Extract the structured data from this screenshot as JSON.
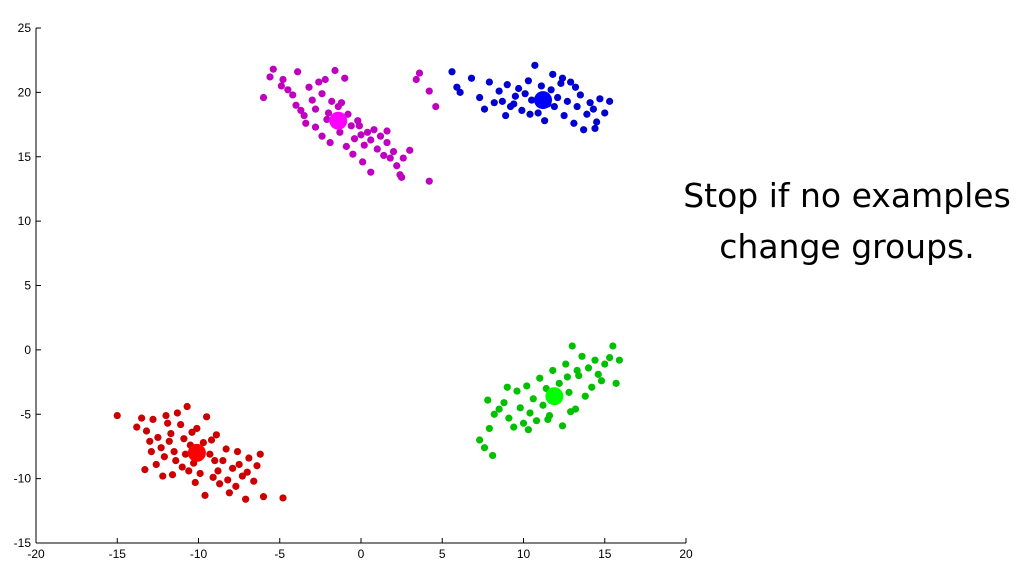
{
  "caption": {
    "line1": "Stop if no examples",
    "line2": "change groups."
  },
  "chart_data": {
    "type": "scatter",
    "title": "",
    "xlabel": "",
    "ylabel": "",
    "xlim": [
      -20,
      20
    ],
    "ylim": [
      -15,
      25
    ],
    "grid": false,
    "x_ticks": [
      -20,
      -15,
      -10,
      -5,
      0,
      5,
      10,
      15,
      20
    ],
    "y_ticks": [
      -15,
      -10,
      -5,
      0,
      5,
      10,
      15,
      20,
      25
    ],
    "series": [
      {
        "color": "#c000c0",
        "centroid": {
          "x": -1.4,
          "y": 17.8,
          "color": "#ff00ff"
        },
        "points": [
          [
            -5.6,
            21.2
          ],
          [
            -5.4,
            21.8
          ],
          [
            -4.8,
            21.0
          ],
          [
            -4.5,
            20.2
          ],
          [
            -4.2,
            19.8
          ],
          [
            -4.0,
            19.0
          ],
          [
            -3.7,
            18.6
          ],
          [
            -3.5,
            18.2
          ],
          [
            -3.2,
            20.4
          ],
          [
            -3.0,
            19.4
          ],
          [
            -2.8,
            18.7
          ],
          [
            -2.6,
            20.8
          ],
          [
            -2.4,
            19.9
          ],
          [
            -2.2,
            21.0
          ],
          [
            -2.0,
            18.4
          ],
          [
            -1.8,
            19.3
          ],
          [
            -1.6,
            21.7
          ],
          [
            -1.4,
            18.9
          ],
          [
            -1.2,
            19.2
          ],
          [
            -1.0,
            21.1
          ],
          [
            -0.8,
            18.3
          ],
          [
            -0.6,
            17.4
          ],
          [
            -0.4,
            16.4
          ],
          [
            -0.2,
            17.8
          ],
          [
            0.0,
            16.7
          ],
          [
            0.2,
            15.9
          ],
          [
            0.4,
            16.9
          ],
          [
            0.6,
            16.3
          ],
          [
            0.8,
            17.1
          ],
          [
            1.0,
            15.6
          ],
          [
            1.2,
            16.6
          ],
          [
            1.4,
            15.1
          ],
          [
            1.6,
            16.1
          ],
          [
            1.8,
            14.9
          ],
          [
            2.0,
            15.4
          ],
          [
            2.2,
            14.3
          ],
          [
            2.4,
            13.6
          ],
          [
            2.6,
            14.9
          ],
          [
            3.0,
            15.5
          ],
          [
            3.4,
            21.0
          ],
          [
            3.6,
            21.5
          ],
          [
            4.2,
            20.1
          ],
          [
            4.6,
            18.9
          ],
          [
            4.2,
            13.1
          ],
          [
            -2.8,
            17.3
          ],
          [
            -2.4,
            16.6
          ],
          [
            -1.9,
            16.1
          ],
          [
            -0.9,
            15.8
          ],
          [
            -0.5,
            15.2
          ],
          [
            0.1,
            14.6
          ],
          [
            0.6,
            13.8
          ],
          [
            2.5,
            13.4
          ],
          [
            -3.4,
            17.6
          ],
          [
            -2.1,
            17.9
          ],
          [
            -6.0,
            19.6
          ],
          [
            -4.9,
            20.5
          ],
          [
            -3.9,
            21.6
          ],
          [
            -1.3,
            16.9
          ],
          [
            -0.1,
            17.4
          ],
          [
            1.6,
            17.0
          ]
        ]
      },
      {
        "color": "#0000d0",
        "centroid": {
          "x": 11.2,
          "y": 19.4,
          "color": "#0000ff"
        },
        "points": [
          [
            5.6,
            21.6
          ],
          [
            5.9,
            20.4
          ],
          [
            6.1,
            20.0
          ],
          [
            6.8,
            21.1
          ],
          [
            7.3,
            19.6
          ],
          [
            7.6,
            18.7
          ],
          [
            7.9,
            20.8
          ],
          [
            8.2,
            19.2
          ],
          [
            8.5,
            20.1
          ],
          [
            8.7,
            19.3
          ],
          [
            9.0,
            20.6
          ],
          [
            9.2,
            18.9
          ],
          [
            9.5,
            19.7
          ],
          [
            9.7,
            20.3
          ],
          [
            9.9,
            18.6
          ],
          [
            10.1,
            19.9
          ],
          [
            10.3,
            20.9
          ],
          [
            10.5,
            19.4
          ],
          [
            10.7,
            22.1
          ],
          [
            10.9,
            18.4
          ],
          [
            11.1,
            20.5
          ],
          [
            11.3,
            17.8
          ],
          [
            11.5,
            19.1
          ],
          [
            11.7,
            20.2
          ],
          [
            11.9,
            18.9
          ],
          [
            12.1,
            19.6
          ],
          [
            12.3,
            20.7
          ],
          [
            12.5,
            18.2
          ],
          [
            12.7,
            19.3
          ],
          [
            12.9,
            20.8
          ],
          [
            13.1,
            17.6
          ],
          [
            13.3,
            18.9
          ],
          [
            13.5,
            19.8
          ],
          [
            13.7,
            17.1
          ],
          [
            13.9,
            18.3
          ],
          [
            14.1,
            19.2
          ],
          [
            14.3,
            18.7
          ],
          [
            14.5,
            17.7
          ],
          [
            14.7,
            19.5
          ],
          [
            15.0,
            18.4
          ],
          [
            15.3,
            19.3
          ],
          [
            12.4,
            21.1
          ],
          [
            10.4,
            18.3
          ],
          [
            9.4,
            19.1
          ],
          [
            13.2,
            20.4
          ],
          [
            14.4,
            17.2
          ],
          [
            11.8,
            21.4
          ],
          [
            8.9,
            18.2
          ]
        ]
      },
      {
        "color": "#cc0000",
        "centroid": {
          "x": -10.1,
          "y": -8.0,
          "color": "#ff0000"
        },
        "points": [
          [
            -15.0,
            -5.1
          ],
          [
            -13.5,
            -5.3
          ],
          [
            -13.2,
            -6.3
          ],
          [
            -13.0,
            -7.1
          ],
          [
            -12.8,
            -5.4
          ],
          [
            -12.5,
            -6.8
          ],
          [
            -12.3,
            -7.6
          ],
          [
            -12.1,
            -8.3
          ],
          [
            -11.9,
            -5.7
          ],
          [
            -11.7,
            -6.5
          ],
          [
            -11.5,
            -7.9
          ],
          [
            -11.3,
            -4.9
          ],
          [
            -11.1,
            -5.8
          ],
          [
            -10.9,
            -6.9
          ],
          [
            -10.7,
            -4.4
          ],
          [
            -10.5,
            -7.4
          ],
          [
            -10.3,
            -8.8
          ],
          [
            -10.1,
            -6.1
          ],
          [
            -9.9,
            -9.6
          ],
          [
            -9.7,
            -7.2
          ],
          [
            -9.5,
            -5.2
          ],
          [
            -9.3,
            -8.1
          ],
          [
            -9.1,
            -9.9
          ],
          [
            -8.9,
            -6.6
          ],
          [
            -8.7,
            -10.4
          ],
          [
            -8.5,
            -8.6
          ],
          [
            -8.3,
            -7.7
          ],
          [
            -8.1,
            -11.1
          ],
          [
            -7.9,
            -9.2
          ],
          [
            -7.7,
            -10.6
          ],
          [
            -7.5,
            -8.9
          ],
          [
            -7.3,
            -9.8
          ],
          [
            -7.1,
            -11.6
          ],
          [
            -6.9,
            -8.4
          ],
          [
            -6.6,
            -10.2
          ],
          [
            -6.2,
            -8.1
          ],
          [
            -6.0,
            -11.4
          ],
          [
            -4.8,
            -11.5
          ],
          [
            -13.3,
            -9.3
          ],
          [
            -12.2,
            -9.8
          ],
          [
            -11.0,
            -9.1
          ],
          [
            -9.6,
            -11.3
          ],
          [
            -10.6,
            -9.4
          ],
          [
            -12.6,
            -8.9
          ],
          [
            -11.8,
            -7.1
          ],
          [
            -10.8,
            -8.1
          ],
          [
            -9.2,
            -7.0
          ],
          [
            -8.8,
            -9.4
          ],
          [
            -7.6,
            -7.9
          ],
          [
            -12.9,
            -7.9
          ],
          [
            -11.4,
            -8.6
          ],
          [
            -10.4,
            -6.4
          ],
          [
            -9.0,
            -8.6
          ],
          [
            -8.2,
            -10.1
          ],
          [
            -7.0,
            -9.5
          ],
          [
            -6.4,
            -9.0
          ],
          [
            -11.6,
            -9.7
          ],
          [
            -10.2,
            -10.3
          ],
          [
            -13.8,
            -6.0
          ],
          [
            -12.0,
            -5.1
          ]
        ]
      },
      {
        "color": "#00c000",
        "centroid": {
          "x": 11.9,
          "y": -3.6,
          "color": "#00ff00"
        },
        "points": [
          [
            7.3,
            -7.0
          ],
          [
            7.6,
            -7.6
          ],
          [
            8.1,
            -8.2
          ],
          [
            7.9,
            -6.1
          ],
          [
            8.2,
            -5.0
          ],
          [
            8.5,
            -4.6
          ],
          [
            8.8,
            -4.1
          ],
          [
            9.1,
            -5.3
          ],
          [
            9.4,
            -6.0
          ],
          [
            9.6,
            -3.2
          ],
          [
            9.8,
            -4.5
          ],
          [
            10.0,
            -5.7
          ],
          [
            10.2,
            -2.8
          ],
          [
            10.4,
            -4.9
          ],
          [
            10.6,
            -3.8
          ],
          [
            10.8,
            -5.5
          ],
          [
            11.0,
            -2.2
          ],
          [
            11.2,
            -4.3
          ],
          [
            11.4,
            -3.0
          ],
          [
            11.6,
            -5.1
          ],
          [
            11.8,
            -1.6
          ],
          [
            12.0,
            -4.0
          ],
          [
            12.2,
            -2.6
          ],
          [
            12.4,
            -5.9
          ],
          [
            12.6,
            -1.1
          ],
          [
            12.8,
            -3.3
          ],
          [
            13.0,
            0.3
          ],
          [
            13.2,
            -4.6
          ],
          [
            13.4,
            -2.0
          ],
          [
            13.6,
            -0.5
          ],
          [
            13.8,
            -3.6
          ],
          [
            14.0,
            -1.4
          ],
          [
            14.2,
            -2.9
          ],
          [
            14.4,
            -0.8
          ],
          [
            14.6,
            -1.9
          ],
          [
            14.8,
            -2.4
          ],
          [
            15.0,
            -1.1
          ],
          [
            15.3,
            -0.6
          ],
          [
            15.5,
            0.3
          ],
          [
            15.7,
            -2.6
          ],
          [
            15.9,
            -0.8
          ],
          [
            7.8,
            -3.9
          ],
          [
            9.0,
            -2.9
          ],
          [
            10.3,
            -6.2
          ],
          [
            11.5,
            -5.4
          ],
          [
            12.9,
            -4.8
          ],
          [
            12.7,
            -2.1
          ],
          [
            13.3,
            -1.6
          ]
        ]
      }
    ]
  }
}
